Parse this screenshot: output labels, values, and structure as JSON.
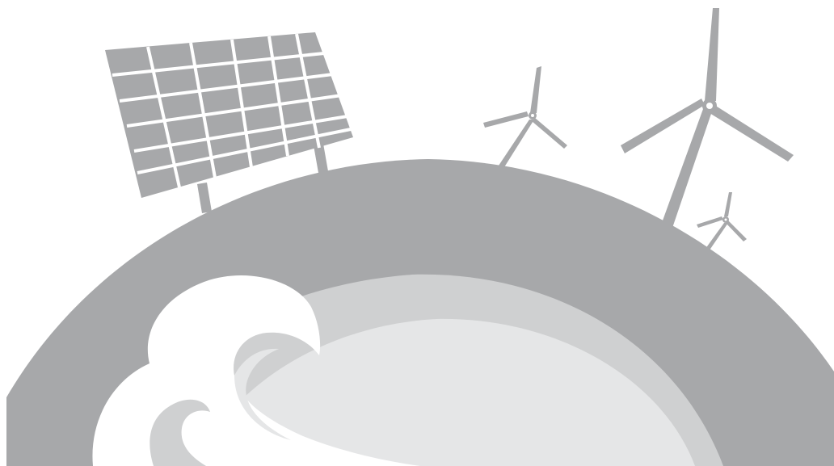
{
  "scene": {
    "subject": "renewable-energy-illustration",
    "colors": {
      "background": "#ffffff",
      "earth": "#a7a8aa",
      "ocean_light": "#e5e6e7",
      "ocean_mid": "#cfd0d1",
      "wave": "#ffffff",
      "structure": "#a7a8aa",
      "grid_line": "#ffffff"
    },
    "icons": [
      "solar-panel-icon",
      "wind-turbine-icon",
      "globe-icon",
      "wave-icon"
    ]
  }
}
